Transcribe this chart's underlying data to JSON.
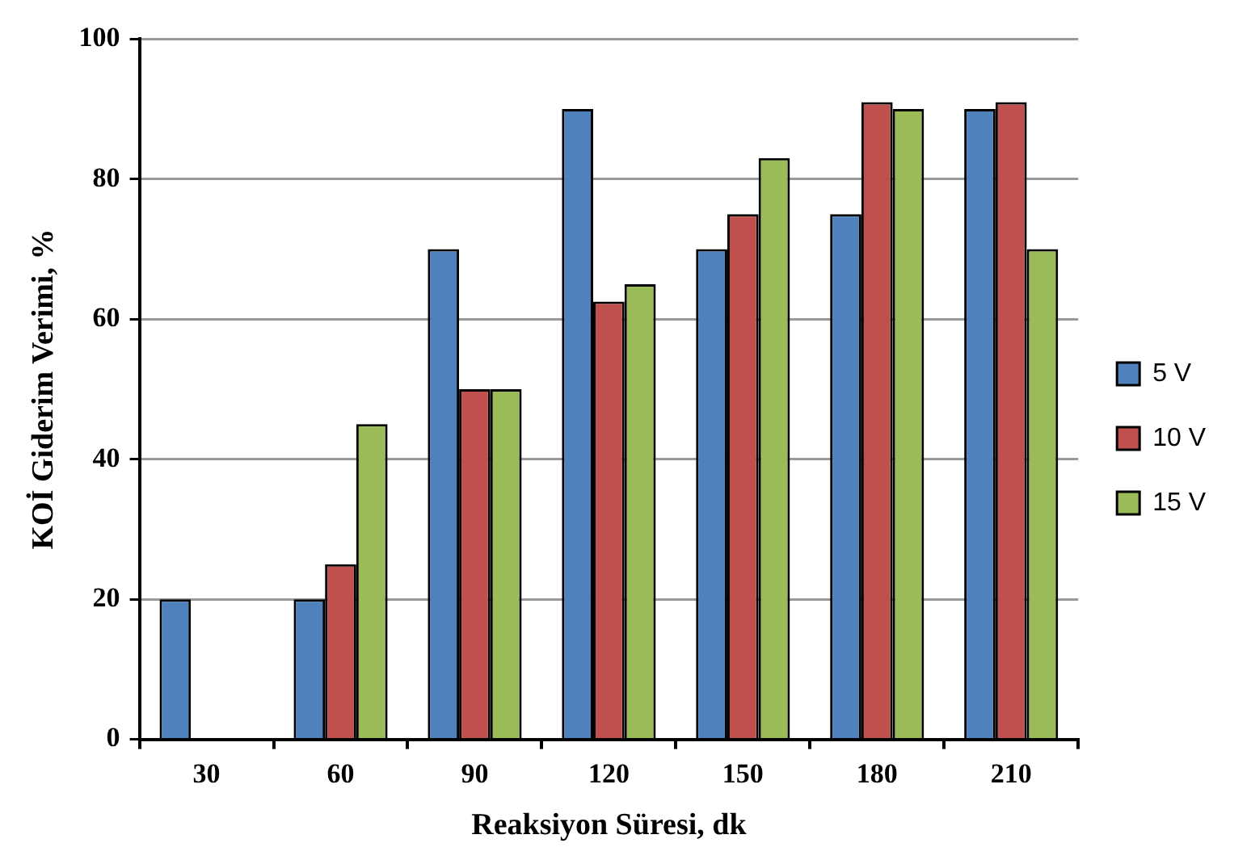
{
  "chart_data": {
    "type": "bar",
    "xlabel": "Reaksiyon Süresi, dk",
    "ylabel": "KOİ Giderim Verimi, %",
    "categories": [
      "30",
      "60",
      "90",
      "120",
      "150",
      "180",
      "210"
    ],
    "series": [
      {
        "name": "5 V",
        "color": "#4f81bd",
        "values": [
          20,
          20,
          70,
          90,
          70,
          75,
          90
        ]
      },
      {
        "name": "10 V",
        "color": "#c0504d",
        "values": [
          null,
          25,
          50,
          62.5,
          75,
          91,
          91
        ]
      },
      {
        "name": "15 V",
        "color": "#9bbb59",
        "values": [
          null,
          45,
          50,
          65,
          83,
          90,
          70
        ]
      }
    ],
    "ylim": [
      0,
      100
    ],
    "yticks": [
      0,
      20,
      40,
      60,
      80,
      100
    ],
    "grid": "y",
    "legend": "right"
  }
}
